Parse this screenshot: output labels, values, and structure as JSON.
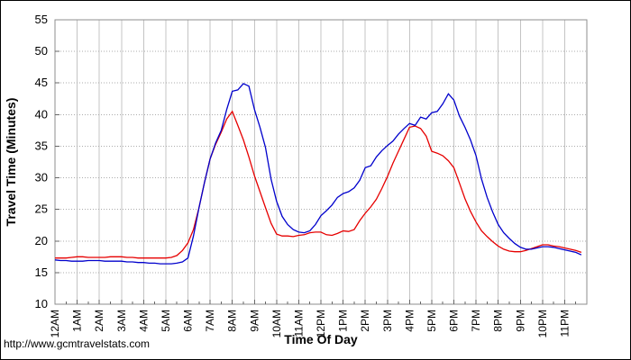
{
  "page": {
    "watermark": "http://www.gcmtravelstats.com"
  },
  "chart_data": {
    "type": "line",
    "title": "",
    "xlabel": "Time Of Day",
    "ylabel": "Travel Time (Minutes)",
    "ylim": [
      10,
      55
    ],
    "y_ticks": [
      10,
      15,
      20,
      25,
      30,
      35,
      40,
      45,
      50,
      55
    ],
    "x_hours_range": [
      0,
      24
    ],
    "x_tick_labels": [
      "12AM",
      "1AM",
      "2AM",
      "3AM",
      "4AM",
      "5AM",
      "6AM",
      "7AM",
      "8AM",
      "9AM",
      "10AM",
      "11AM",
      "12PM",
      "1PM",
      "2PM",
      "3PM",
      "4PM",
      "5PM",
      "6PM",
      "7PM",
      "8PM",
      "9PM",
      "10PM",
      "11PM"
    ],
    "x_step_minutes": 15,
    "grid": {
      "vertical": "solid",
      "horizontal": "dotted"
    },
    "legend_position": "none",
    "style": {
      "grid_vertical_color": "#c4c4c4",
      "grid_horizontal_color": "#ababab",
      "frame_color": "#8e8e8e",
      "tick_color": "#666666",
      "background": "#ffffff"
    },
    "series": [
      {
        "name": "red-line",
        "color": "#e60000",
        "values": [
          17.3,
          17.3,
          17.3,
          17.4,
          17.5,
          17.5,
          17.4,
          17.4,
          17.4,
          17.4,
          17.5,
          17.5,
          17.5,
          17.4,
          17.4,
          17.3,
          17.3,
          17.3,
          17.3,
          17.3,
          17.3,
          17.4,
          17.7,
          18.5,
          19.7,
          21.8,
          25.3,
          29.3,
          33.0,
          35.3,
          37.2,
          39.3,
          40.5,
          38.3,
          36.0,
          33.3,
          30.3,
          27.8,
          25.3,
          22.8,
          21.1,
          20.8,
          20.8,
          20.7,
          20.9,
          21.0,
          21.3,
          21.4,
          21.4,
          21.0,
          20.9,
          21.2,
          21.6,
          21.5,
          21.8,
          23.2,
          24.4,
          25.4,
          26.6,
          28.3,
          30.2,
          32.3,
          34.2,
          36.1,
          38.0,
          38.2,
          37.8,
          36.6,
          34.2,
          33.9,
          33.5,
          32.7,
          31.6,
          29.2,
          26.7,
          24.7,
          23.0,
          21.6,
          20.7,
          19.9,
          19.2,
          18.7,
          18.4,
          18.3,
          18.3,
          18.5,
          18.8,
          19.1,
          19.4,
          19.4,
          19.2,
          19.1,
          18.9,
          18.7,
          18.5,
          18.2
        ]
      },
      {
        "name": "blue-line",
        "color": "#0000cc",
        "values": [
          17.0,
          16.9,
          16.9,
          16.8,
          16.8,
          16.8,
          16.9,
          16.9,
          16.9,
          16.8,
          16.8,
          16.8,
          16.8,
          16.7,
          16.7,
          16.6,
          16.6,
          16.5,
          16.5,
          16.4,
          16.4,
          16.4,
          16.5,
          16.7,
          17.3,
          20.8,
          25.3,
          29.3,
          33.0,
          35.5,
          37.5,
          40.8,
          43.7,
          43.9,
          44.9,
          44.5,
          40.8,
          38.0,
          34.8,
          29.8,
          26.3,
          23.9,
          22.6,
          21.8,
          21.4,
          21.3,
          21.6,
          22.6,
          24.0,
          24.8,
          25.7,
          26.9,
          27.5,
          27.8,
          28.4,
          29.6,
          31.6,
          31.9,
          33.3,
          34.3,
          35.1,
          35.8,
          36.9,
          37.8,
          38.6,
          38.3,
          39.6,
          39.3,
          40.3,
          40.5,
          41.7,
          43.3,
          42.3,
          39.8,
          38.0,
          36.0,
          33.5,
          29.8,
          26.9,
          24.6,
          22.6,
          21.3,
          20.4,
          19.6,
          19.0,
          18.7,
          18.7,
          18.9,
          19.1,
          19.1,
          19.0,
          18.8,
          18.6,
          18.4,
          18.2,
          17.8
        ]
      }
    ]
  }
}
